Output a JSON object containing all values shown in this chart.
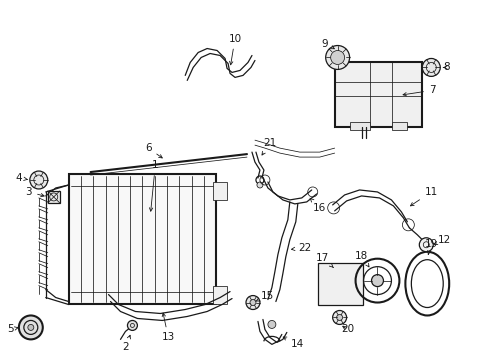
{
  "bg_color": "#ffffff",
  "line_color": "#1a1a1a",
  "figsize": [
    4.89,
    3.6
  ],
  "dpi": 100,
  "lw": 0.9,
  "lw_thick": 1.5,
  "lw_thin": 0.55,
  "font_size": 7.5
}
